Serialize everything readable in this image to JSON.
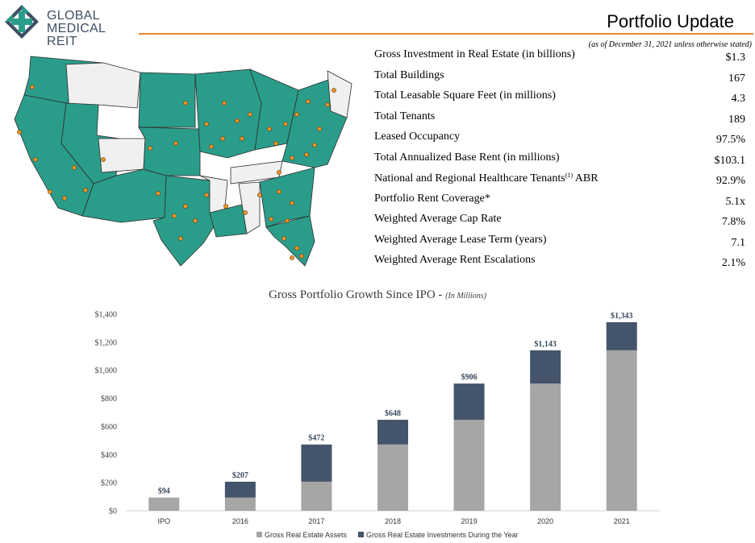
{
  "header": {
    "logo_line1": "GLOBAL",
    "logo_line2": "MEDICAL REIT",
    "title": "Portfolio Update",
    "as_of": "(as of December 31, 2021 unless otherwise stated)"
  },
  "colors": {
    "map_fill": "#2a9d8a",
    "map_empty": "#f0f0f0",
    "marker": "#f0962a",
    "accent": "#e8872d",
    "assets_bar": "#a6a6a6",
    "investments_bar": "#44546a"
  },
  "stats": [
    {
      "label": "Gross Investment in Real Estate (in billions)",
      "value": "$1.3"
    },
    {
      "label": "Total Buildings",
      "value": "167"
    },
    {
      "label": "Total Leasable Square Feet (in millions)",
      "value": "4.3"
    },
    {
      "label": "Total Tenants",
      "value": "189"
    },
    {
      "label": "Leased Occupancy",
      "value": "97.5%"
    },
    {
      "label": "Total Annualized Base Rent (in millions)",
      "value": "$103.1"
    },
    {
      "label": "National and Regional Healthcare Tenants",
      "sup": "(1)",
      "label_after": " ABR",
      "value": "92.9%"
    },
    {
      "label": "Portfolio Rent Coverage*",
      "value": "5.1x"
    },
    {
      "label": "Weighted Average Cap Rate",
      "value": "7.8%"
    },
    {
      "label": "Weighted Average Lease Term (years)",
      "value": "7.1"
    },
    {
      "label": "Weighted Average Rent Escalations",
      "value": "2.1%"
    }
  ],
  "chart_data": {
    "type": "bar",
    "stacked": true,
    "title": "Gross Portfolio Growth Since IPO - ",
    "title_unit": "(In Millions)",
    "categories": [
      "IPO",
      "2016",
      "2017",
      "2018",
      "2019",
      "2020",
      "2021"
    ],
    "series": [
      {
        "name": "Gross Real Estate Assets",
        "color": "#a6a6a6",
        "values": [
          94,
          94,
          207,
          472,
          648,
          906,
          1143
        ]
      },
      {
        "name": "Gross Real Estate Investments During the Year",
        "color": "#44546a",
        "values": [
          0,
          113,
          265,
          176,
          258,
          237,
          200
        ]
      }
    ],
    "totals": [
      "$94",
      "$207",
      "$472",
      "$648",
      "$906",
      "$1,143",
      "$1,343"
    ],
    "total_values": [
      94,
      207,
      472,
      648,
      906,
      1143,
      1343
    ],
    "yticks": [
      0,
      200,
      400,
      600,
      800,
      1000,
      1200,
      1400
    ],
    "ytick_labels": [
      "$0",
      "$200",
      "$400",
      "$600",
      "$800",
      "$1,000",
      "$1,200",
      "$1,400"
    ],
    "ylim": [
      0,
      1400
    ],
    "grid": false,
    "legend": "bottom"
  }
}
